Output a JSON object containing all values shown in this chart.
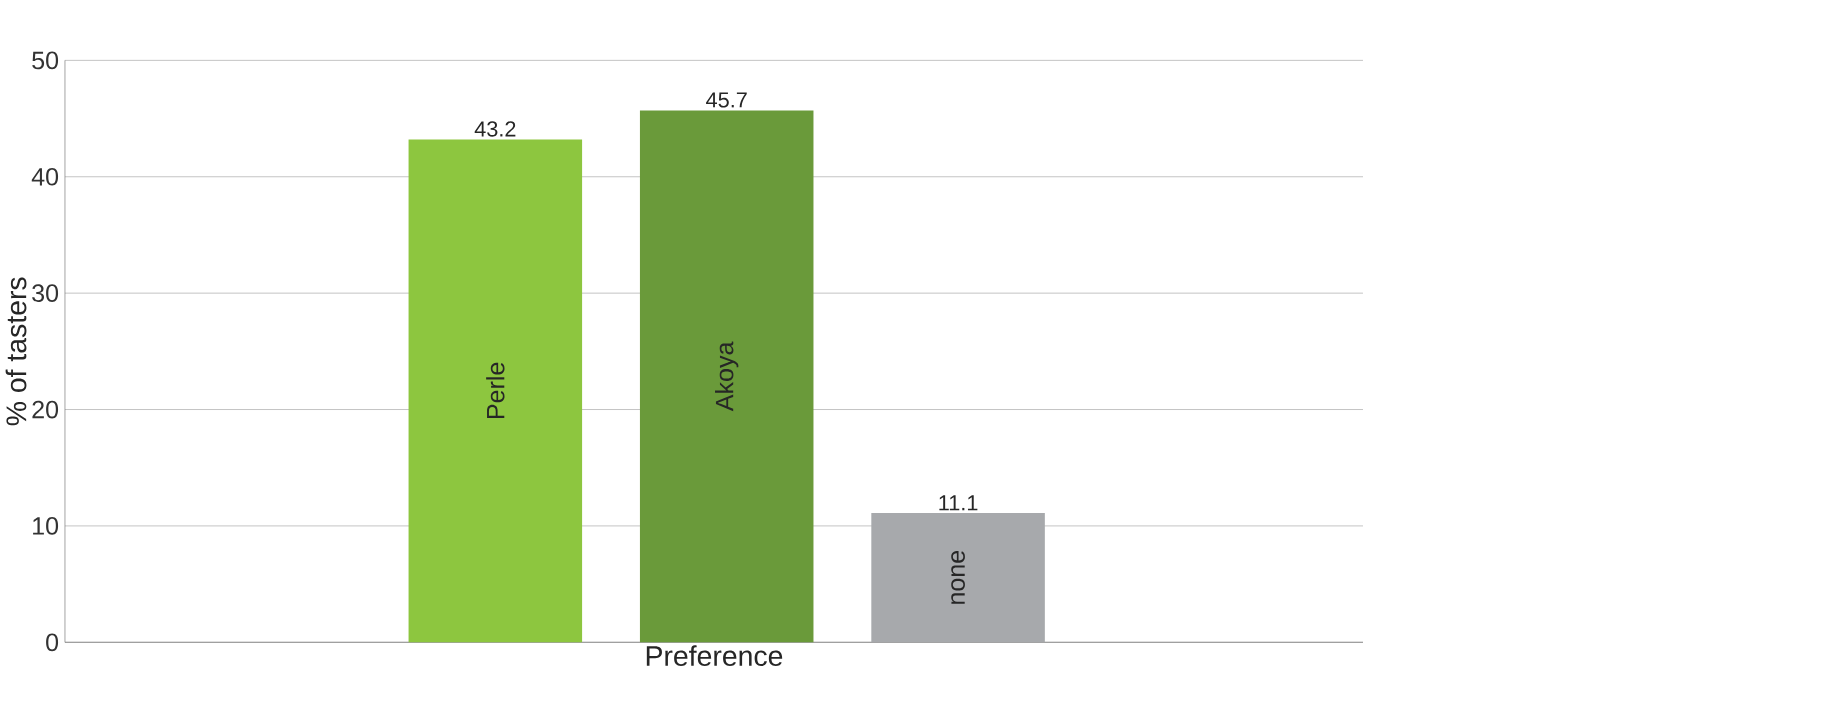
{
  "chart_data": {
    "type": "bar",
    "xlabel": "Preference",
    "ylabel": "% of tasters",
    "categories": [
      "Perle",
      "Akoya",
      "none"
    ],
    "values": [
      43.2,
      45.7,
      11.1
    ],
    "colors": [
      "#8dc63f",
      "#6a9a3a",
      "#a7a9ac"
    ],
    "ylim": [
      0,
      50
    ],
    "yticks": [
      0,
      10,
      20,
      30,
      40,
      50
    ],
    "grid": "y",
    "data_labels": true
  }
}
